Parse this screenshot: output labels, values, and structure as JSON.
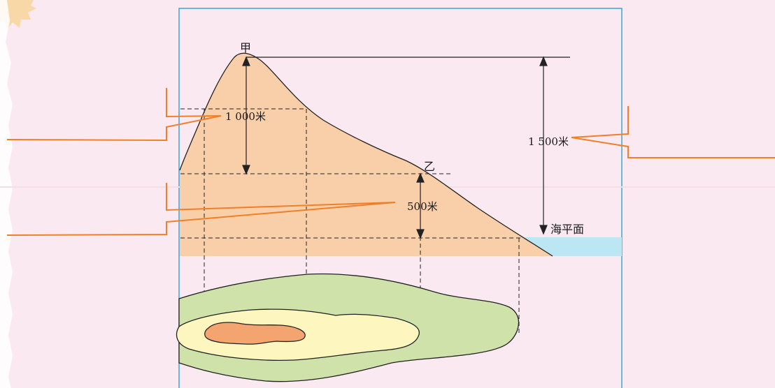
{
  "labels": {
    "peak_a": "甲",
    "point_b": "乙",
    "relative_height_a": "1 000米",
    "relative_height_b": "500米",
    "absolute_height": "1 500米",
    "sea_level": "海平面"
  },
  "colors": {
    "background": "#fbe9f1",
    "frame": "#3aa6d8",
    "mountain": "#f9cfaa",
    "sea": "#bde6f5",
    "contour_outer": "#cfe2a9",
    "contour_middle": "#fdf7bf",
    "contour_inner": "#f4a56f",
    "leader": "#f07f2a"
  }
}
